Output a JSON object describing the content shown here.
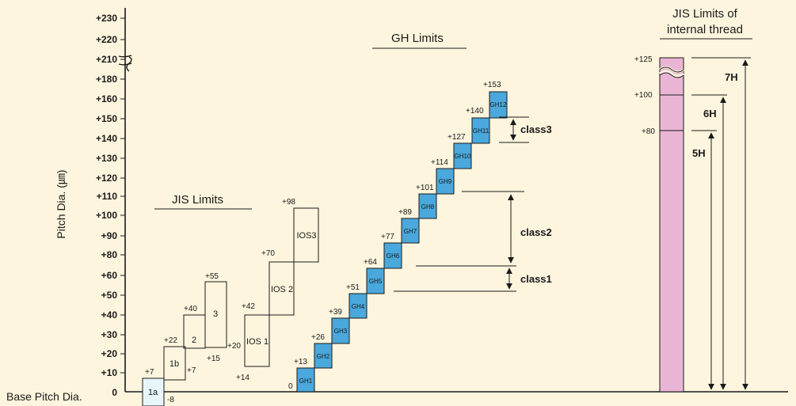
{
  "y_axis": {
    "label": "Pitch Dia. (㎛)",
    "ticks": [
      "+230",
      "+220",
      "+210",
      "+180",
      "+160",
      "+150",
      "+140",
      "+130",
      "+120",
      "+110",
      "+100",
      "+90",
      "+80",
      "+60",
      "+50",
      "+40",
      "+30",
      "+20",
      "+10",
      "0"
    ]
  },
  "base_label": "Base Pitch Dia.",
  "jis_limits": {
    "title": "JIS Limits",
    "boxes": [
      "1a",
      "1b",
      "2",
      "3"
    ],
    "value_labels": [
      "+7",
      "-8",
      "+22",
      "+7",
      "+40",
      "+15",
      "+55",
      "+20"
    ]
  },
  "ios": {
    "boxes": [
      "IOS 1",
      "IOS 2",
      "IOS3"
    ],
    "value_labels": [
      "+42",
      "+14",
      "+70",
      "+98"
    ]
  },
  "gh_limits": {
    "title": "GH Limits",
    "boxes": [
      "GH1",
      "GH2",
      "GH3",
      "GH4",
      "GH5",
      "GH6",
      "GH7",
      "GH8",
      "GH9",
      "GH10",
      "GH11",
      "GH12"
    ],
    "value_labels": [
      "0",
      "+13",
      "+26",
      "+39",
      "+51",
      "+64",
      "+77",
      "+89",
      "+101",
      "+114",
      "+127",
      "+140",
      "+153"
    ],
    "classes": [
      "class1",
      "class2",
      "class3"
    ]
  },
  "internal_thread": {
    "title_line1": "JIS Limits of",
    "title_line2": "internal thread",
    "value_labels": [
      "+125",
      "+100",
      "+80"
    ],
    "classes": [
      "7H",
      "6H",
      "5H"
    ]
  },
  "colors": {
    "background": "#fdf5de",
    "gh_fill": "#4aa8dc",
    "box_1a_fill": "#e8f6fc",
    "internal_bar": "#eab5d5",
    "line": "#1a1a1a"
  }
}
